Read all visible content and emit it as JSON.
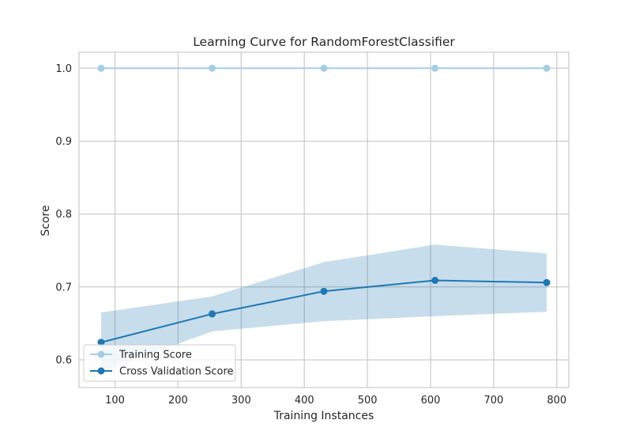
{
  "chart_data": {
    "type": "line",
    "title": "Learning Curve for RandomForestClassifier",
    "xlabel": "Training Instances",
    "ylabel": "Score",
    "xlim": [
      43,
      819
    ],
    "ylim": [
      0.562,
      1.022
    ],
    "xticks": [
      100,
      200,
      300,
      400,
      500,
      600,
      700,
      800
    ],
    "yticks": [
      0.6,
      0.7,
      0.8,
      0.9,
      1.0
    ],
    "ytick_labels": [
      "0.6",
      "0.7",
      "0.8",
      "0.9",
      "1.0"
    ],
    "x": [
      78,
      254,
      431,
      607,
      784
    ],
    "grid": true,
    "legend_position": "lower-left",
    "series": [
      {
        "name": "Training Score",
        "color": "#a6cee3",
        "values": [
          1.0,
          1.0,
          1.0,
          1.0,
          1.0
        ],
        "band_lower": [
          1.0,
          1.0,
          1.0,
          1.0,
          1.0
        ],
        "band_upper": [
          1.0,
          1.0,
          1.0,
          1.0,
          1.0
        ]
      },
      {
        "name": "Cross Validation Score",
        "color": "#1f78b4",
        "values": [
          0.624,
          0.663,
          0.694,
          0.709,
          0.706
        ],
        "band_lower": [
          0.584,
          0.639,
          0.653,
          0.66,
          0.666
        ],
        "band_upper": [
          0.665,
          0.687,
          0.734,
          0.758,
          0.746
        ]
      }
    ]
  }
}
